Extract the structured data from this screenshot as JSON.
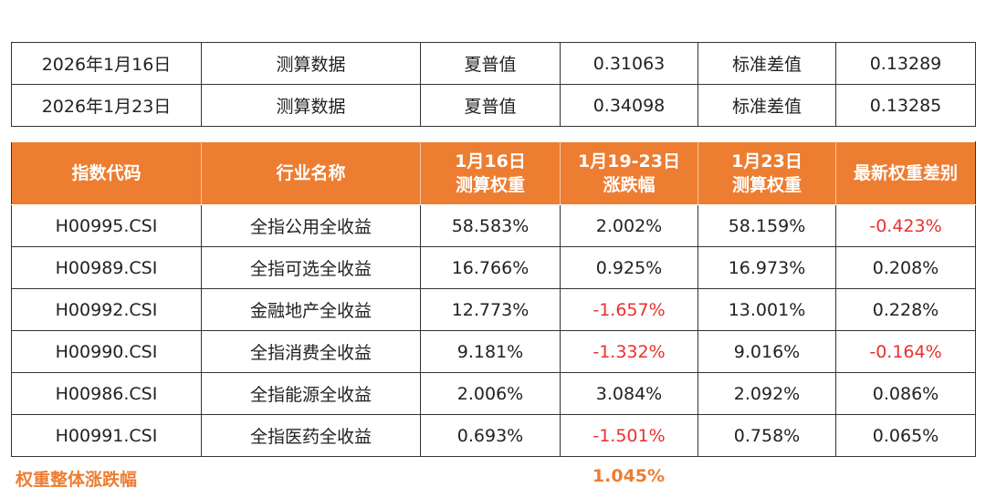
{
  "summary_rows": [
    {
      "date": "2026年1月16日",
      "type": "测算数据",
      "sharpe_label": "夏普值",
      "sharpe_value": "0.31063",
      "std_label": "标准差值",
      "std_value": "0.13289"
    },
    {
      "date": "2026年1月23日",
      "type": "测算数据",
      "sharpe_label": "夏普值",
      "sharpe_value": "0.34098",
      "std_label": "标准差值",
      "std_value": "0.13285"
    }
  ],
  "headers": {
    "code": "指数代码",
    "name": "行业名称",
    "w1_line1": "1月16日",
    "w1_line2": "测算权重",
    "chg_line1": "1月19-23日",
    "chg_line2": "涨跌幅",
    "w2_line1": "1月23日",
    "w2_line2": "测算权重",
    "diff": "最新权重差别"
  },
  "rows": [
    {
      "code": "H00995.CSI",
      "name": "全指公用全收益",
      "w1": "58.583%",
      "chg": "2.002%",
      "w2": "58.159%",
      "diff": "-0.423%"
    },
    {
      "code": "H00989.CSI",
      "name": "全指可选全收益",
      "w1": "16.766%",
      "chg": "0.925%",
      "w2": "16.973%",
      "diff": "0.208%"
    },
    {
      "code": "H00992.CSI",
      "name": "金融地产全收益",
      "w1": "12.773%",
      "chg": "-1.657%",
      "w2": "13.001%",
      "diff": "0.228%"
    },
    {
      "code": "H00990.CSI",
      "name": "全指消费全收益",
      "w1": "9.181%",
      "chg": "-1.332%",
      "w2": "9.016%",
      "diff": "-0.164%"
    },
    {
      "code": "H00986.CSI",
      "name": "全指能源全收益",
      "w1": "2.006%",
      "chg": "3.084%",
      "w2": "2.092%",
      "diff": "0.086%"
    },
    {
      "code": "H00991.CSI",
      "name": "全指医药全收益",
      "w1": "0.693%",
      "chg": "-1.501%",
      "w2": "0.758%",
      "diff": "0.065%"
    }
  ],
  "footer": {
    "label": "权重整体涨跌幅",
    "value": "1.045%"
  },
  "colors": {
    "header_bg": "#ED7D31",
    "negative": "#E8312F",
    "accent": "#ED7D31"
  }
}
